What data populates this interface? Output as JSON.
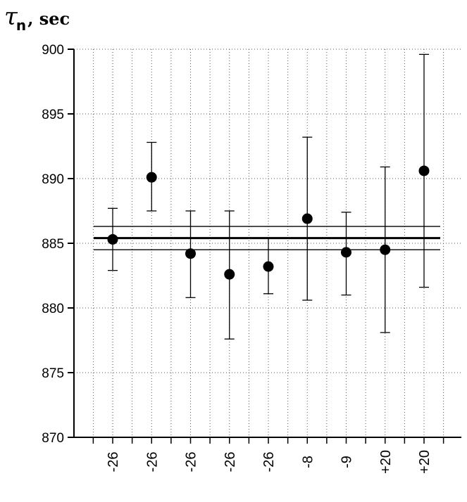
{
  "chart_data": {
    "type": "scatter",
    "title": "",
    "ylabel": {
      "symbol": "τ",
      "subscript": "n",
      "unit": ", sec"
    },
    "xlabel": "",
    "ylim": [
      870,
      900
    ],
    "yticks": [
      870,
      875,
      880,
      885,
      890,
      895,
      900
    ],
    "categories": [
      "-26",
      "-26",
      "-26",
      "-26",
      "-26",
      "-8",
      "-9",
      "+20",
      "+20"
    ],
    "values": [
      885.3,
      890.1,
      884.2,
      882.6,
      883.2,
      886.9,
      884.3,
      884.5,
      890.6
    ],
    "error_high": [
      887.7,
      892.8,
      887.5,
      887.5,
      885.4,
      893.2,
      887.4,
      890.9,
      899.6
    ],
    "error_low": [
      882.9,
      887.5,
      880.8,
      877.6,
      881.1,
      880.6,
      881.0,
      878.1,
      881.6
    ],
    "mean_line": 885.4,
    "band_upper": 886.3,
    "band_lower": 884.5,
    "grid": true,
    "grid_style": "dotted"
  }
}
